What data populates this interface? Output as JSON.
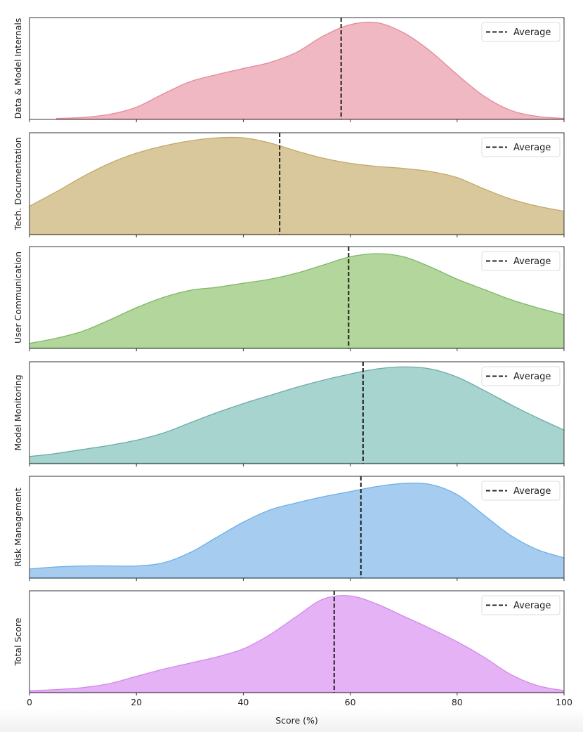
{
  "chart_data": {
    "type": "area",
    "title": "",
    "xlabel": "Score (%)",
    "xlim": [
      0,
      100
    ],
    "xticks": [
      "0",
      "20",
      "40",
      "60",
      "80",
      "100"
    ],
    "legend_label": "Average",
    "legend_placement": "top-right",
    "x": [
      0,
      5,
      10,
      15,
      20,
      25,
      30,
      35,
      40,
      45,
      50,
      55,
      60,
      65,
      70,
      75,
      80,
      85,
      90,
      95,
      100
    ],
    "panels": [
      {
        "ylabel": "Data & Model Internals",
        "fill": "#efb8c2",
        "stroke": "#e48a9a",
        "average": 58.3,
        "density": [
          null,
          0.01,
          0.02,
          0.05,
          0.12,
          0.25,
          0.37,
          0.44,
          0.5,
          0.56,
          0.66,
          0.82,
          0.93,
          0.95,
          0.85,
          0.67,
          0.44,
          0.23,
          0.09,
          0.03,
          0.01
        ]
      },
      {
        "ylabel": "Tech. Documentation",
        "fill": "#d9c89b",
        "stroke": "#c4a86a",
        "average": 46.8,
        "density": [
          0.28,
          0.42,
          0.57,
          0.7,
          0.8,
          0.87,
          0.92,
          0.95,
          0.95,
          0.9,
          0.82,
          0.75,
          0.7,
          0.67,
          0.65,
          0.62,
          0.56,
          0.45,
          0.35,
          0.28,
          0.23
        ]
      },
      {
        "ylabel": "User Communication",
        "fill": "#b2d69c",
        "stroke": "#7fb867",
        "average": 59.7,
        "density": [
          0.05,
          0.1,
          0.17,
          0.28,
          0.4,
          0.5,
          0.57,
          0.6,
          0.64,
          0.68,
          0.74,
          0.82,
          0.9,
          0.93,
          0.9,
          0.8,
          0.68,
          0.58,
          0.48,
          0.4,
          0.33
        ]
      },
      {
        "ylabel": "Model Monitoring",
        "fill": "#a8d4d0",
        "stroke": "#6aaca6",
        "average": 62.4,
        "density": [
          0.07,
          0.1,
          0.14,
          0.18,
          0.23,
          0.3,
          0.4,
          0.5,
          0.59,
          0.67,
          0.75,
          0.82,
          0.88,
          0.93,
          0.95,
          0.93,
          0.85,
          0.72,
          0.58,
          0.45,
          0.33
        ]
      },
      {
        "ylabel": "Risk Management",
        "fill": "#a6cdf0",
        "stroke": "#6ab0e8",
        "average": 62.0,
        "density": [
          0.09,
          0.11,
          0.12,
          0.12,
          0.12,
          0.15,
          0.25,
          0.4,
          0.55,
          0.67,
          0.74,
          0.8,
          0.85,
          0.9,
          0.93,
          0.92,
          0.82,
          0.62,
          0.42,
          0.28,
          0.2
        ]
      },
      {
        "ylabel": "Total Score",
        "fill": "#e5b2f5",
        "stroke": "#d08ae8",
        "average": 57.0,
        "density": [
          0.02,
          0.03,
          0.05,
          0.09,
          0.16,
          0.23,
          0.29,
          0.35,
          0.43,
          0.57,
          0.75,
          0.92,
          0.95,
          0.87,
          0.75,
          0.63,
          0.5,
          0.35,
          0.18,
          0.07,
          0.02
        ]
      }
    ]
  }
}
